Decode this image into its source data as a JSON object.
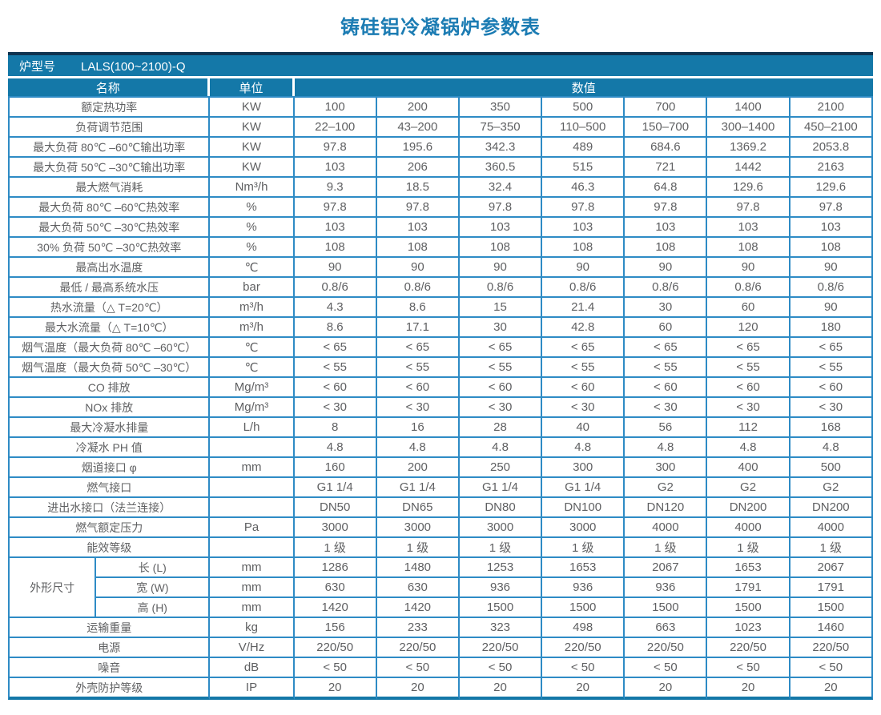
{
  "title": "铸硅铝冷凝锅炉参数表",
  "colors": {
    "header_bg": "#1478a8",
    "grid_line": "#2e8bc5",
    "top_border": "#0e3350",
    "bottom_border": "#1478a8",
    "title_text": "#1c7cb3",
    "body_text": "#5f6062",
    "header_text": "#ffffff"
  },
  "table": {
    "model_label": "炉型号",
    "model_value": "LALS(100~2100)-Q",
    "col_headers": {
      "name": "名称",
      "unit": "单位",
      "values": "数值"
    },
    "rows_top": [
      {
        "label": "额定热功率",
        "unit": "KW",
        "values": [
          "100",
          "200",
          "350",
          "500",
          "700",
          "1400",
          "2100"
        ]
      },
      {
        "label": "负荷调节范围",
        "unit": "KW",
        "values": [
          "22–100",
          "43–200",
          "75–350",
          "110–500",
          "150–700",
          "300–1400",
          "450–2100"
        ]
      },
      {
        "label": "最大负荷 80℃ –60℃输出功率",
        "unit": "KW",
        "values": [
          "97.8",
          "195.6",
          "342.3",
          "489",
          "684.6",
          "1369.2",
          "2053.8"
        ]
      },
      {
        "label": "最大负荷 50℃ –30℃输出功率",
        "unit": "KW",
        "values": [
          "103",
          "206",
          "360.5",
          "515",
          "721",
          "1442",
          "2163"
        ]
      },
      {
        "label": "最大燃气消耗",
        "unit": "Nm³/h",
        "values": [
          "9.3",
          "18.5",
          "32.4",
          "46.3",
          "64.8",
          "129.6",
          "129.6"
        ]
      },
      {
        "label": "最大负荷 80℃ –60℃热效率",
        "unit": "%",
        "values": [
          "97.8",
          "97.8",
          "97.8",
          "97.8",
          "97.8",
          "97.8",
          "97.8"
        ]
      },
      {
        "label": "最大负荷 50℃ –30℃热效率",
        "unit": "%",
        "values": [
          "103",
          "103",
          "103",
          "103",
          "103",
          "103",
          "103"
        ]
      },
      {
        "label": "30% 负荷 50℃ –30℃热效率",
        "unit": "%",
        "values": [
          "108",
          "108",
          "108",
          "108",
          "108",
          "108",
          "108"
        ]
      },
      {
        "label": "最高出水温度",
        "unit": "℃",
        "values": [
          "90",
          "90",
          "90",
          "90",
          "90",
          "90",
          "90"
        ]
      },
      {
        "label": "最低 / 最高系统水压",
        "unit": "bar",
        "values": [
          "0.8/6",
          "0.8/6",
          "0.8/6",
          "0.8/6",
          "0.8/6",
          "0.8/6",
          "0.8/6"
        ]
      },
      {
        "label": "热水流量（△ T=20℃）",
        "unit": "m³/h",
        "values": [
          "4.3",
          "8.6",
          "15",
          "21.4",
          "30",
          "60",
          "90"
        ]
      },
      {
        "label": "最大水流量（△ T=10℃）",
        "unit": "m³/h",
        "values": [
          "8.6",
          "17.1",
          "30",
          "42.8",
          "60",
          "120",
          "180"
        ]
      },
      {
        "label": "烟气温度（最大负荷 80℃ –60℃）",
        "unit": "℃",
        "values": [
          "< 65",
          "< 65",
          "< 65",
          "< 65",
          "< 65",
          "< 65",
          "< 65"
        ]
      },
      {
        "label": "烟气温度（最大负荷 50℃ –30℃）",
        "unit": "℃",
        "values": [
          "< 55",
          "< 55",
          "< 55",
          "< 55",
          "< 55",
          "< 55",
          "< 55"
        ]
      },
      {
        "label": "CO 排放",
        "unit": "Mg/m³",
        "values": [
          "< 60",
          "< 60",
          "< 60",
          "< 60",
          "< 60",
          "< 60",
          "< 60"
        ]
      },
      {
        "label": "NOx 排放",
        "unit": "Mg/m³",
        "values": [
          "< 30",
          "< 30",
          "< 30",
          "< 30",
          "< 30",
          "< 30",
          "< 30"
        ]
      },
      {
        "label": "最大冷凝水排量",
        "unit": "L/h",
        "values": [
          "8",
          "16",
          "28",
          "40",
          "56",
          "112",
          "168"
        ]
      },
      {
        "label": "冷凝水 PH 值",
        "unit": "",
        "values": [
          "4.8",
          "4.8",
          "4.8",
          "4.8",
          "4.8",
          "4.8",
          "4.8"
        ]
      },
      {
        "label": "烟道接口 φ",
        "unit": "mm",
        "values": [
          "160",
          "200",
          "250",
          "300",
          "300",
          "400",
          "500"
        ]
      },
      {
        "label": "燃气接口",
        "unit": "",
        "values": [
          "G1 1/4",
          "G1 1/4",
          "G1 1/4",
          "G1 1/4",
          "G2",
          "G2",
          "G2"
        ]
      },
      {
        "label": "进出水接口（法兰连接）",
        "unit": "",
        "values": [
          "DN50",
          "DN65",
          "DN80",
          "DN100",
          "DN120",
          "DN200",
          "DN200"
        ]
      },
      {
        "label": "燃气额定压力",
        "unit": "Pa",
        "values": [
          "3000",
          "3000",
          "3000",
          "3000",
          "4000",
          "4000",
          "4000"
        ]
      },
      {
        "label": "能效等级",
        "unit": "",
        "values": [
          "1 级",
          "1 级",
          "1 级",
          "1 级",
          "1 级",
          "1 级",
          "1 级"
        ]
      }
    ],
    "dimension_group": {
      "label": "外形尺寸",
      "rows": [
        {
          "label": "长 (L)",
          "unit": "mm",
          "values": [
            "1286",
            "1480",
            "1253",
            "1653",
            "2067",
            "1653",
            "2067"
          ]
        },
        {
          "label": "宽 (W)",
          "unit": "mm",
          "values": [
            "630",
            "630",
            "936",
            "936",
            "936",
            "1791",
            "1791"
          ]
        },
        {
          "label": "高 (H)",
          "unit": "mm",
          "values": [
            "1420",
            "1420",
            "1500",
            "1500",
            "1500",
            "1500",
            "1500"
          ]
        }
      ]
    },
    "rows_bottom": [
      {
        "label": "运输重量",
        "unit": "kg",
        "values": [
          "156",
          "233",
          "323",
          "498",
          "663",
          "1023",
          "1460"
        ]
      },
      {
        "label": "电源",
        "unit": "V/Hz",
        "values": [
          "220/50",
          "220/50",
          "220/50",
          "220/50",
          "220/50",
          "220/50",
          "220/50"
        ]
      },
      {
        "label": "噪音",
        "unit": "dB",
        "values": [
          "< 50",
          "< 50",
          "< 50",
          "< 50",
          "< 50",
          "< 50",
          "< 50"
        ]
      },
      {
        "label": "外壳防护等级",
        "unit": "IP",
        "values": [
          "20",
          "20",
          "20",
          "20",
          "20",
          "20",
          "20"
        ]
      }
    ]
  }
}
